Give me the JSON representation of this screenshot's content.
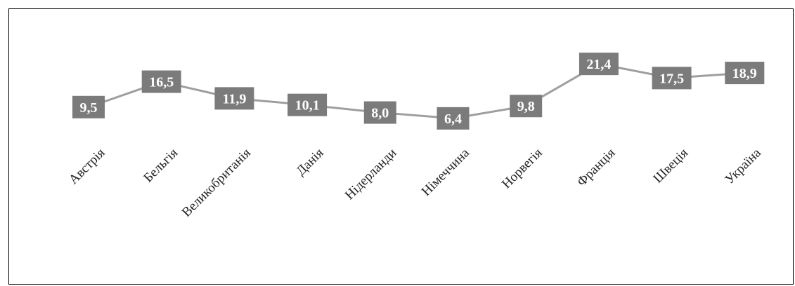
{
  "chart_data": {
    "type": "line",
    "categories": [
      "Австрія",
      "Бельгія",
      "Великобританія",
      "Данія",
      "Нідерланди",
      "Німеччина",
      "Норвегія",
      "Франція",
      "Швеція",
      "Україна"
    ],
    "series": [
      {
        "values": [
          9.5,
          16.5,
          11.9,
          10.1,
          8.0,
          6.4,
          9.8,
          21.4,
          17.5,
          18.9
        ]
      }
    ],
    "data_labels": [
      "9,5",
      "16,5",
      "11,9",
      "10,1",
      "8,0",
      "6,4",
      "9,8",
      "21,4",
      "17,5",
      "18,9"
    ],
    "title": "",
    "xlabel": "",
    "ylabel": "",
    "grid": false,
    "legend": "none",
    "colors": {
      "line": "#9e9e9e",
      "label_box": "#7b7b7b",
      "label_text": "#ffffff",
      "tick_text": "#222222"
    }
  }
}
